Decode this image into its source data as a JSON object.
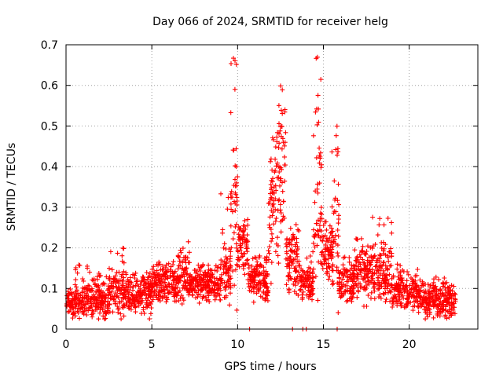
{
  "chart_data": {
    "type": "scatter",
    "title": "Day 066 of 2024, SRMTID for receiver helg",
    "xlabel": "GPS time / hours",
    "ylabel": "SRMTID / TECUs",
    "xlim": [
      0,
      24
    ],
    "ylim": [
      0,
      0.7
    ],
    "xticks": [
      0,
      5,
      10,
      15,
      20
    ],
    "xtick_labels": [
      "0",
      "5",
      "10",
      "15",
      "20"
    ],
    "yticks": [
      0,
      0.1,
      0.2,
      0.3,
      0.4,
      0.5,
      0.6,
      0.7
    ],
    "ytick_labels": [
      "0",
      "0.1",
      "0.2",
      "0.3",
      "0.4",
      "0.5",
      "0.6",
      "0.7"
    ],
    "grid": true,
    "marker": "+",
    "series_color": "#ff0000",
    "segments": [
      {
        "x0": 0.0,
        "x1": 0.5,
        "base": 0.06,
        "spread": 0.025,
        "hi": 0.1
      },
      {
        "x0": 0.5,
        "x1": 1.5,
        "base": 0.07,
        "spread": 0.03,
        "hi": 0.16
      },
      {
        "x0": 1.5,
        "x1": 2.5,
        "base": 0.07,
        "spread": 0.03,
        "hi": 0.14
      },
      {
        "x0": 2.5,
        "x1": 3.5,
        "base": 0.09,
        "spread": 0.04,
        "hi": 0.2
      },
      {
        "x0": 3.5,
        "x1": 5.0,
        "base": 0.08,
        "spread": 0.035,
        "hi": 0.14
      },
      {
        "x0": 5.0,
        "x1": 6.5,
        "base": 0.11,
        "spread": 0.035,
        "hi": 0.17
      },
      {
        "x0": 6.5,
        "x1": 7.2,
        "base": 0.13,
        "spread": 0.05,
        "hi": 0.22
      },
      {
        "x0": 7.2,
        "x1": 9.0,
        "base": 0.11,
        "spread": 0.03,
        "hi": 0.16
      },
      {
        "x0": 9.0,
        "x1": 9.6,
        "base": 0.15,
        "spread": 0.06,
        "hi": 0.35
      },
      {
        "x0": 9.6,
        "x1": 10.0,
        "base": 0.3,
        "spread": 0.15,
        "hi": 0.69
      },
      {
        "x0": 10.0,
        "x1": 10.6,
        "base": 0.2,
        "spread": 0.05,
        "hi": 0.27
      },
      {
        "x0": 10.6,
        "x1": 11.8,
        "base": 0.12,
        "spread": 0.035,
        "hi": 0.18
      },
      {
        "x0": 11.8,
        "x1": 12.4,
        "base": 0.3,
        "spread": 0.12,
        "hi": 0.5
      },
      {
        "x0": 12.4,
        "x1": 12.8,
        "base": 0.4,
        "spread": 0.12,
        "hi": 0.63
      },
      {
        "x0": 12.8,
        "x1": 13.6,
        "base": 0.17,
        "spread": 0.06,
        "hi": 0.28
      },
      {
        "x0": 13.6,
        "x1": 14.4,
        "base": 0.11,
        "spread": 0.035,
        "hi": 0.2
      },
      {
        "x0": 14.4,
        "x1": 14.9,
        "base": 0.3,
        "spread": 0.15,
        "hi": 0.69
      },
      {
        "x0": 14.9,
        "x1": 15.5,
        "base": 0.18,
        "spread": 0.05,
        "hi": 0.28
      },
      {
        "x0": 15.5,
        "x1": 15.9,
        "base": 0.25,
        "spread": 0.12,
        "hi": 0.51
      },
      {
        "x0": 15.9,
        "x1": 16.8,
        "base": 0.11,
        "spread": 0.035,
        "hi": 0.18
      },
      {
        "x0": 16.8,
        "x1": 17.8,
        "base": 0.14,
        "spread": 0.05,
        "hi": 0.23
      },
      {
        "x0": 17.8,
        "x1": 19.0,
        "base": 0.14,
        "spread": 0.06,
        "hi": 0.28
      },
      {
        "x0": 19.0,
        "x1": 20.5,
        "base": 0.09,
        "spread": 0.03,
        "hi": 0.16
      },
      {
        "x0": 20.5,
        "x1": 22.7,
        "base": 0.07,
        "spread": 0.03,
        "hi": 0.13
      }
    ],
    "zero_points": [
      10.7,
      13.2,
      13.8,
      14.0,
      15.8
    ]
  }
}
